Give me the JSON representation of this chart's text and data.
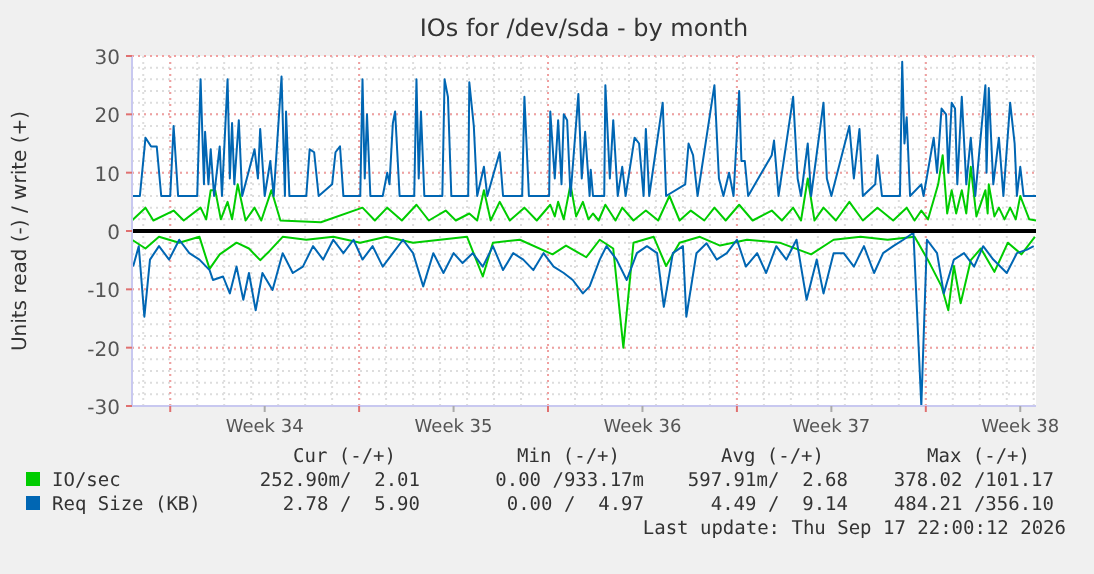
{
  "chart_data": {
    "type": "line",
    "title": "IOs for /dev/sda - by month",
    "ylabel": "Units read (-) / write (+)",
    "xlim": [
      "2026-08-15T14:00",
      "2026-09-18T02:00"
    ],
    "xticks": [
      {
        "value": "2026-08-17T00:00",
        "label": null
      },
      {
        "value": "2026-08-20T12:00",
        "label": "Week 34"
      },
      {
        "value": "2026-08-24T00:00",
        "label": null
      },
      {
        "value": "2026-08-27T12:00",
        "label": "Week 35"
      },
      {
        "value": "2026-08-31T00:00",
        "label": null
      },
      {
        "value": "2026-09-03T12:00",
        "label": "Week 36"
      },
      {
        "value": "2026-09-07T00:00",
        "label": null
      },
      {
        "value": "2026-09-10T12:00",
        "label": "Week 37"
      },
      {
        "value": "2026-09-14T00:00",
        "label": null
      },
      {
        "value": "2026-09-17T12:00",
        "label": "Week 38"
      }
    ],
    "ylim": [
      -30,
      30
    ],
    "yticks": [
      -30,
      -20,
      -10,
      0,
      10,
      20,
      30
    ],
    "grid": true,
    "legend": "bottom",
    "line_style": "solid",
    "ref_lines": [
      {
        "axis": "y",
        "value": 0,
        "color": "#000000"
      }
    ],
    "series": [
      {
        "name": "IO/sec",
        "color": "#00cc00",
        "x": [
          "2026-08-15T14:00",
          "2026-08-16T02:00",
          "2026-08-16T09:00",
          "2026-08-17T03:00",
          "2026-08-17T12:00",
          "2026-08-18T03:00",
          "2026-08-18T08:00",
          "2026-08-18T12:00",
          "2026-08-18T16:00",
          "2026-08-18T21:00",
          "2026-08-19T03:00",
          "2026-08-19T07:00",
          "2026-08-19T12:00",
          "2026-08-19T19:00",
          "2026-08-20T03:00",
          "2026-08-20T09:00",
          "2026-08-20T18:00",
          "2026-08-21T02:00",
          "2026-08-22T14:00",
          "2026-08-24T03:00",
          "2026-08-24T14:00",
          "2026-08-25T01:00",
          "2026-08-25T14:00",
          "2026-08-26T03:00",
          "2026-08-26T14:00",
          "2026-08-27T05:00",
          "2026-08-27T14:00",
          "2026-08-28T02:00",
          "2026-08-28T09:00",
          "2026-08-28T15:00",
          "2026-08-28T21:00",
          "2026-08-29T05:00",
          "2026-08-29T14:00",
          "2026-08-30T03:00",
          "2026-08-30T14:00",
          "2026-08-31T02:00",
          "2026-08-31T06:00",
          "2026-08-31T09:00",
          "2026-08-31T14:00",
          "2026-08-31T20:00",
          "2026-09-01T01:00",
          "2026-09-01T07:00",
          "2026-09-01T12:00",
          "2026-09-01T16:00",
          "2026-09-01T21:00",
          "2026-09-02T03:00",
          "2026-09-02T12:00",
          "2026-09-02T18:00",
          "2026-09-03T04:00",
          "2026-09-03T15:00",
          "2026-09-04T02:00",
          "2026-09-04T12:00",
          "2026-09-04T21:00",
          "2026-09-05T07:00",
          "2026-09-05T19:00",
          "2026-09-06T04:00",
          "2026-09-06T14:00",
          "2026-09-07T02:00",
          "2026-09-07T14:00",
          "2026-09-08T07:00",
          "2026-09-08T16:00",
          "2026-09-09T02:00",
          "2026-09-09T09:00",
          "2026-09-09T15:00",
          "2026-09-09T21:00",
          "2026-09-10T05:00",
          "2026-09-10T16:00",
          "2026-09-11T04:00",
          "2026-09-11T16:00",
          "2026-09-12T05:00",
          "2026-09-12T19:00",
          "2026-09-13T07:00",
          "2026-09-13T14:00",
          "2026-09-13T20:00",
          "2026-09-14T02:00",
          "2026-09-14T11:00",
          "2026-09-14T15:00",
          "2026-09-14T19:00",
          "2026-09-14T23:00",
          "2026-09-15T03:00",
          "2026-09-15T08:00",
          "2026-09-15T12:00",
          "2026-09-15T16:00",
          "2026-09-15T21:00",
          "2026-09-16T05:00",
          "2026-09-16T07:00",
          "2026-09-16T08:00",
          "2026-09-16T13:00",
          "2026-09-16T17:00",
          "2026-09-16T22:00",
          "2026-09-17T03:00",
          "2026-09-17T08:00",
          "2026-09-17T12:00",
          "2026-09-17T20:00",
          "2026-09-18T02:00"
        ],
        "values": [
          1.8,
          4,
          1.8,
          3.5,
          1.8,
          4,
          2,
          7,
          7,
          2,
          5,
          2,
          8,
          1.8,
          4,
          1.8,
          7,
          1.8,
          1.5,
          4,
          1.8,
          4,
          1.8,
          4.5,
          1.8,
          3.5,
          1.8,
          3,
          1.8,
          7,
          1.8,
          5,
          1.8,
          4,
          1.8,
          4.5,
          2.5,
          5,
          2,
          8,
          2.5,
          5,
          2,
          3,
          1.8,
          4.5,
          1.8,
          4,
          1.8,
          3.5,
          1.8,
          6,
          1.8,
          3.5,
          1.8,
          4,
          1.8,
          4.5,
          1.8,
          3.5,
          1.8,
          4,
          1.8,
          9,
          1.8,
          4,
          1.8,
          5,
          1.8,
          4,
          1.8,
          4,
          1.8,
          3.5,
          2,
          8,
          13,
          3,
          7,
          3,
          7,
          3,
          11,
          2.5,
          7,
          3,
          8,
          2.5,
          4,
          2,
          4,
          2,
          6,
          2,
          1.8
        ]
      },
      {
        "color": "#00cc00",
        "x": [
          "2026-08-15T14:00",
          "2026-08-16T02:00",
          "2026-08-16T14:00",
          "2026-08-17T08:00",
          "2026-08-18T02:00",
          "2026-08-18T11:00",
          "2026-08-18T20:00",
          "2026-08-19T11:00",
          "2026-08-19T22:00",
          "2026-08-20T08:00",
          "2026-08-20T16:00",
          "2026-08-21T04:00",
          "2026-08-22T01:00",
          "2026-08-23T01:00",
          "2026-08-24T01:00",
          "2026-08-25T00:00",
          "2026-08-26T00:00",
          "2026-08-27T00:00",
          "2026-08-28T00:00",
          "2026-08-28T14:00",
          "2026-08-28T23:00",
          "2026-08-29T23:00",
          "2026-08-31T04:00",
          "2026-08-31T16:00",
          "2026-09-01T10:00",
          "2026-09-01T22:00",
          "2026-09-02T10:00",
          "2026-09-02T19:00",
          "2026-09-03T04:00",
          "2026-09-03T22:00",
          "2026-09-04T09:00",
          "2026-09-04T21:00",
          "2026-09-05T15:00",
          "2026-09-06T09:00",
          "2026-09-07T09:00",
          "2026-09-08T14:00",
          "2026-09-09T18:00",
          "2026-09-10T14:00",
          "2026-09-11T14:00",
          "2026-09-12T14:00",
          "2026-09-13T14:00",
          "2026-09-14T02:00",
          "2026-09-14T14:00",
          "2026-09-14T20:00",
          "2026-09-15T01:00",
          "2026-09-15T07:00",
          "2026-09-15T16:00",
          "2026-09-16T01:00",
          "2026-09-16T13:00",
          "2026-09-17T01:00",
          "2026-09-17T13:00",
          "2026-09-18T01:00"
        ],
        "values": [
          -1.5,
          -3,
          -1,
          -2,
          -1,
          -6.5,
          -4,
          -2,
          -3,
          -5,
          -3.5,
          -1,
          -1.5,
          -1,
          -2,
          -1,
          -2,
          -1.5,
          -1,
          -7.8,
          -2,
          -1.5,
          -4,
          -2.5,
          -4.5,
          -1.5,
          -3,
          -20,
          -2,
          -1,
          -6,
          -2,
          -1,
          -2.5,
          -1.5,
          -2,
          -4,
          -1.5,
          -1,
          -1.5,
          -1,
          -5,
          -9.5,
          -13.6,
          -6,
          -12.4,
          -5,
          -3,
          -7,
          -2,
          -4,
          -1
        ]
      },
      {
        "name": "Req Size (KB)",
        "color": "#0066b3",
        "x": [
          "2026-08-15T14:00",
          "2026-08-15T21:00",
          "2026-08-16T02:00",
          "2026-08-16T07:00",
          "2026-08-16T12:00",
          "2026-08-16T16:00",
          "2026-08-17T00:00",
          "2026-08-17T03:00",
          "2026-08-17T07:00",
          "2026-08-18T00:00",
          "2026-08-18T03:00",
          "2026-08-18T06:00",
          "2026-08-18T07:00",
          "2026-08-18T10:00",
          "2026-08-18T12:00",
          "2026-08-18T15:00",
          "2026-08-18T20:00",
          "2026-08-18T22:00",
          "2026-08-19T03:00",
          "2026-08-19T05:00",
          "2026-08-19T07:00",
          "2026-08-19T09:00",
          "2026-08-19T13:00",
          "2026-08-19T16:00",
          "2026-08-20T03:00",
          "2026-08-20T06:00",
          "2026-08-20T08:00",
          "2026-08-20T12:00",
          "2026-08-20T17:00",
          "2026-08-20T20:00",
          "2026-08-21T03:00",
          "2026-08-21T06:00",
          "2026-08-21T07:00",
          "2026-08-21T10:00",
          "2026-08-22T01:00",
          "2026-08-22T04:00",
          "2026-08-22T08:00",
          "2026-08-22T12:00",
          "2026-08-23T00:00",
          "2026-08-23T03:00",
          "2026-08-23T07:00",
          "2026-08-23T10:00",
          "2026-08-24T01:00",
          "2026-08-24T03:00",
          "2026-08-24T05:00",
          "2026-08-24T07:00",
          "2026-08-24T10:00",
          "2026-08-24T21:00",
          "2026-08-25T01:00",
          "2026-08-25T03:00",
          "2026-08-25T06:00",
          "2026-08-25T08:00",
          "2026-08-25T12:00",
          "2026-08-26T01:00",
          "2026-08-26T03:00",
          "2026-08-26T05:00",
          "2026-08-26T07:00",
          "2026-08-26T10:00",
          "2026-08-27T02:00",
          "2026-08-27T04:00",
          "2026-08-27T07:00",
          "2026-08-27T10:00",
          "2026-08-28T01:00",
          "2026-08-28T02:00",
          "2026-08-28T06:00",
          "2026-08-28T09:00",
          "2026-08-28T15:00",
          "2026-08-28T18:00",
          "2026-08-29T05:00",
          "2026-08-29T08:00",
          "2026-08-30T01:00",
          "2026-08-30T03:00",
          "2026-08-30T07:00",
          "2026-08-31T01:00",
          "2026-08-31T02:00",
          "2026-08-31T06:00",
          "2026-08-31T09:00",
          "2026-08-31T12:00",
          "2026-08-31T14:00",
          "2026-08-31T17:00",
          "2026-08-31T20:00",
          "2026-09-01T03:00",
          "2026-09-01T06:00",
          "2026-09-01T09:00",
          "2026-09-01T13:00",
          "2026-09-01T14:00",
          "2026-09-01T16:00",
          "2026-09-02T02:00",
          "2026-09-02T03:00",
          "2026-09-02T07:00",
          "2026-09-02T10:00",
          "2026-09-02T14:00",
          "2026-09-02T18:00",
          "2026-09-02T21:00",
          "2026-09-03T05:00",
          "2026-09-03T09:00",
          "2026-09-03T13:00",
          "2026-09-03T15:00",
          "2026-09-03T18:00",
          "2026-09-04T06:00",
          "2026-09-04T09:00",
          "2026-09-05T02:00",
          "2026-09-05T05:00",
          "2026-09-05T09:00",
          "2026-09-05T13:00",
          "2026-09-06T04:00",
          "2026-09-06T08:00",
          "2026-09-06T12:00",
          "2026-09-06T17:00",
          "2026-09-06T21:00",
          "2026-09-07T02:00",
          "2026-09-07T04:00",
          "2026-09-07T07:00",
          "2026-09-07T10:00",
          "2026-09-08T07:00",
          "2026-09-08T09:00",
          "2026-09-08T13:00",
          "2026-09-09T02:00",
          "2026-09-09T06:00",
          "2026-09-09T09:00",
          "2026-09-09T15:00",
          "2026-09-09T18:00",
          "2026-09-10T05:00",
          "2026-09-10T08:00",
          "2026-09-10T12:00",
          "2026-09-11T04:00",
          "2026-09-11T08:00",
          "2026-09-11T13:00",
          "2026-09-11T16:00",
          "2026-09-12T03:00",
          "2026-09-12T05:00",
          "2026-09-12T09:00",
          "2026-09-13T01:00",
          "2026-09-13T03:00",
          "2026-09-13T05:00",
          "2026-09-13T07:00",
          "2026-09-13T10:00",
          "2026-09-13T20:00",
          "2026-09-13T22:00",
          "2026-09-14T07:00",
          "2026-09-14T10:00",
          "2026-09-14T14:00",
          "2026-09-14T18:00",
          "2026-09-14T20:00",
          "2026-09-14T23:00",
          "2026-09-15T02:00",
          "2026-09-15T04:00",
          "2026-09-15T08:00",
          "2026-09-15T12:00",
          "2026-09-15T16:00",
          "2026-09-15T20:00",
          "2026-09-16T05:00",
          "2026-09-16T06:00",
          "2026-09-16T08:00",
          "2026-09-16T12:00",
          "2026-09-16T17:00",
          "2026-09-16T21:00",
          "2026-09-17T03:00",
          "2026-09-17T07:00",
          "2026-09-17T09:00",
          "2026-09-17T12:00",
          "2026-09-17T15:00",
          "2026-09-18T02:00"
        ],
        "values": [
          6,
          6,
          16,
          14.5,
          14.5,
          6,
          6,
          18,
          6,
          6,
          26,
          8,
          17,
          8,
          14,
          6,
          14.5,
          6,
          26,
          9,
          18.5,
          8,
          19,
          6,
          14,
          9,
          17.5,
          6,
          12,
          6,
          26.5,
          6,
          20.5,
          6,
          6,
          14,
          13.5,
          6,
          8,
          13.5,
          14.5,
          6,
          6,
          26,
          9,
          20,
          6,
          6,
          10,
          8,
          18.5,
          20.5,
          6,
          6,
          26,
          9,
          20.5,
          6,
          6,
          26,
          23,
          6,
          6,
          25.5,
          18,
          6,
          11,
          6,
          13.5,
          6,
          6,
          23,
          6,
          6,
          20.5,
          9,
          19,
          8,
          20,
          19,
          6,
          23.5,
          9,
          17,
          6,
          10.5,
          6,
          6,
          25,
          9,
          19,
          6,
          11,
          6,
          16,
          15,
          6,
          17.5,
          6,
          22,
          6,
          8,
          15,
          13,
          6,
          25,
          9,
          6,
          10,
          6,
          24,
          12,
          12,
          6,
          13,
          15.5,
          6,
          23,
          9,
          6,
          15,
          6,
          22,
          9,
          6,
          18,
          9,
          17.5,
          6,
          8,
          13,
          6,
          6,
          29,
          15,
          19.5,
          6,
          8,
          6,
          16,
          10,
          21,
          20,
          10,
          22,
          21,
          8,
          23,
          8,
          16,
          6,
          25,
          10,
          24.5,
          8,
          16,
          6,
          22,
          15,
          6,
          11,
          6,
          6
        ]
      },
      {
        "color": "#0066b3",
        "x": [
          "2026-08-15T15:00",
          "2026-08-15T20:00",
          "2026-08-16T01:00",
          "2026-08-16T06:00",
          "2026-08-16T14:00",
          "2026-08-16T23:00",
          "2026-08-17T08:00",
          "2026-08-17T17:00",
          "2026-08-18T02:00",
          "2026-08-18T11:00",
          "2026-08-18T14:00",
          "2026-08-18T23:00",
          "2026-08-19T05:00",
          "2026-08-19T11:00",
          "2026-08-19T17:00",
          "2026-08-19T22:00",
          "2026-08-20T04:00",
          "2026-08-20T10:00",
          "2026-08-20T19:00",
          "2026-08-21T04:00",
          "2026-08-21T13:00",
          "2026-08-21T22:00",
          "2026-08-22T07:00",
          "2026-08-22T16:00",
          "2026-08-23T01:00",
          "2026-08-23T10:00",
          "2026-08-23T19:00",
          "2026-08-24T03:00",
          "2026-08-24T12:00",
          "2026-08-24T21:00",
          "2026-08-25T06:00",
          "2026-08-25T15:00",
          "2026-08-26T00:00",
          "2026-08-26T09:00",
          "2026-08-26T18:00",
          "2026-08-27T03:00",
          "2026-08-27T12:00",
          "2026-08-27T20:00",
          "2026-08-28T05:00",
          "2026-08-28T14:00",
          "2026-08-28T23:00",
          "2026-08-29T08:00",
          "2026-08-29T17:00",
          "2026-08-30T02:00",
          "2026-08-30T11:00",
          "2026-08-30T20:00",
          "2026-08-31T05:00",
          "2026-08-31T14:00",
          "2026-08-31T22:00",
          "2026-09-01T07:00",
          "2026-09-01T13:00",
          "2026-09-01T22:00",
          "2026-09-02T04:00",
          "2026-09-02T13:00",
          "2026-09-02T22:00",
          "2026-09-03T07:00",
          "2026-09-03T16:00",
          "2026-09-04T01:00",
          "2026-09-04T07:00",
          "2026-09-04T15:00",
          "2026-09-05T00:00",
          "2026-09-05T03:00",
          "2026-09-05T12:00",
          "2026-09-05T21:00",
          "2026-09-06T06:00",
          "2026-09-06T15:00",
          "2026-09-07T00:00",
          "2026-09-07T08:00",
          "2026-09-07T18:00",
          "2026-09-08T02:00",
          "2026-09-08T11:00",
          "2026-09-08T20:00",
          "2026-09-09T05:00",
          "2026-09-09T14:00",
          "2026-09-09T23:00",
          "2026-09-10T05:00",
          "2026-09-10T14:00",
          "2026-09-10T23:00",
          "2026-09-11T08:00",
          "2026-09-11T17:00",
          "2026-09-12T02:00",
          "2026-09-12T10:00",
          "2026-09-12T19:00",
          "2026-09-13T04:00",
          "2026-09-13T13:00",
          "2026-09-13T20:00",
          "2026-09-14T01:00",
          "2026-09-14T10:00",
          "2026-09-14T16:00",
          "2026-09-15T01:00",
          "2026-09-15T10:00",
          "2026-09-15T19:00",
          "2026-09-16T03:00",
          "2026-09-16T12:00",
          "2026-09-17T00:00",
          "2026-09-17T09:00",
          "2026-09-17T18:00",
          "2026-09-18T00:00"
        ],
        "values": [
          -6.1,
          -2.6,
          -14.7,
          -4.9,
          -2.6,
          -4.9,
          -1.5,
          -3.8,
          -4.9,
          -6.7,
          -8.4,
          -7.8,
          -10.7,
          -6.1,
          -11.8,
          -7.2,
          -13.6,
          -7.2,
          -10.1,
          -3.8,
          -7.2,
          -6.1,
          -2.6,
          -4.9,
          -1.5,
          -3.8,
          -1.5,
          -4.9,
          -2.6,
          -6.1,
          -3.8,
          -1.5,
          -3.8,
          -9.5,
          -3.8,
          -7.2,
          -3.8,
          -5.5,
          -3.8,
          -6.1,
          -2.6,
          -6.7,
          -3.8,
          -4.9,
          -6.7,
          -3.8,
          -6.1,
          -7.2,
          -8.4,
          -10.7,
          -9.5,
          -4.9,
          -2.6,
          -4.9,
          -8.4,
          -3.8,
          -2.6,
          -3.8,
          -13,
          -3.8,
          -2.6,
          -14.7,
          -3.8,
          -2.1,
          -4.9,
          -3.8,
          -1.5,
          -6.1,
          -3.8,
          -7.2,
          -2.6,
          -4.9,
          -1.5,
          -11.8,
          -4.9,
          -10.7,
          -3.8,
          -3.8,
          -6.1,
          -2.6,
          -7.2,
          -3.8,
          -2.6,
          -1.5,
          -0.3,
          -30,
          -1.5,
          -3.8,
          -10.7,
          -4.9,
          -3.8,
          -6.1,
          -2.6,
          -4.9,
          -7.2,
          -3.8,
          -3.2,
          -2.6
        ]
      }
    ],
    "annotations": [
      "Cur (-/+)",
      "Min (-/+)",
      "Avg (-/+)",
      "Max (-/+)",
      "252.90m/  2.01",
      "0.00 /933.17m",
      "597.91m/  2.68",
      "378.02 /101.17",
      "2.78 /  5.90",
      "0.00 /  4.97",
      "4.49 /  9.14",
      "484.21 /356.10",
      "Last update: Thu Sep 17 22:00:12 2026"
    ]
  }
}
